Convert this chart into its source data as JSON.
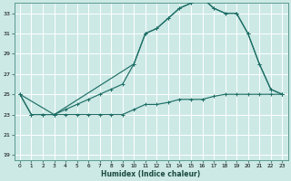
{
  "xlabel": "Humidex (Indice chaleur)",
  "bg_color": "#cce9e6",
  "grid_color": "#ffffff",
  "line_color": "#1e6e65",
  "xlim": [
    -0.5,
    23.5
  ],
  "ylim": [
    18.5,
    34.0
  ],
  "yticks": [
    19,
    21,
    23,
    25,
    27,
    29,
    31,
    33
  ],
  "xticks": [
    0,
    1,
    2,
    3,
    4,
    5,
    6,
    7,
    8,
    9,
    10,
    11,
    12,
    13,
    14,
    15,
    16,
    17,
    18,
    19,
    20,
    21,
    22,
    23
  ],
  "line1_x": [
    0,
    1,
    2,
    3,
    4,
    5,
    6,
    7,
    8,
    9,
    10,
    11,
    12,
    13,
    14,
    15,
    16,
    17,
    18,
    19,
    20,
    21,
    22,
    23
  ],
  "line1_y": [
    25,
    23,
    23,
    23,
    23,
    23,
    23,
    23,
    23,
    23,
    23.5,
    24,
    24,
    24.2,
    24.5,
    24.5,
    24.5,
    24.8,
    25,
    25,
    25,
    25,
    25,
    25
  ],
  "line2_x": [
    0,
    1,
    2,
    3,
    4,
    5,
    6,
    7,
    8,
    9,
    10,
    11,
    12,
    13,
    14,
    15,
    16,
    17,
    18,
    19,
    20,
    21,
    22,
    23
  ],
  "line2_y": [
    25,
    23,
    23,
    23,
    23.5,
    24,
    24.5,
    25,
    25.5,
    26,
    28,
    31,
    31.5,
    32.5,
    33.5,
    34,
    34.5,
    33.5,
    33,
    33,
    31,
    28,
    25.5,
    25
  ],
  "line3_x": [
    0,
    3,
    10,
    11,
    12,
    13,
    14,
    15,
    16,
    17,
    18,
    19,
    20,
    21,
    22,
    23
  ],
  "line3_y": [
    25,
    23,
    28,
    31,
    31.5,
    32.5,
    33.5,
    34,
    34.5,
    33.5,
    33,
    33,
    31,
    28,
    25.5,
    25
  ]
}
